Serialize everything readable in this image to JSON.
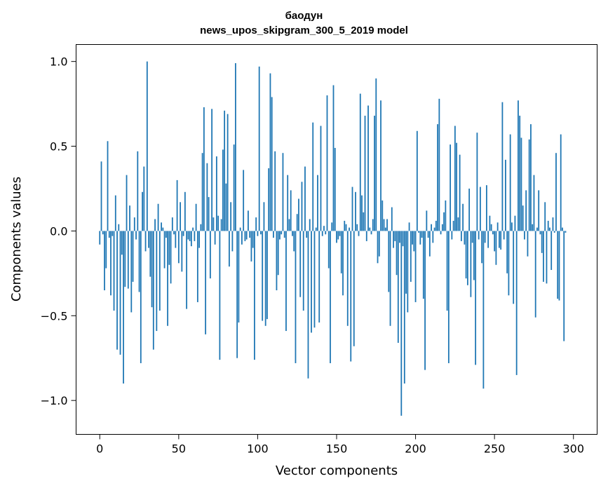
{
  "chart_data": {
    "type": "bar",
    "title": [
      "баодун",
      "news_upos_skipgram_300_5_2019 model"
    ],
    "xlabel": "Vector components",
    "ylabel": "Components values",
    "xlim": [
      -15,
      315
    ],
    "ylim": [
      -1.2,
      1.1
    ],
    "x_ticks": [
      0,
      50,
      100,
      150,
      200,
      250,
      300
    ],
    "x_tick_labels": [
      "0",
      "50",
      "100",
      "150",
      "200",
      "250",
      "300"
    ],
    "y_ticks": [
      1.0,
      0.5,
      0.0,
      -0.5,
      -1.0
    ],
    "y_tick_labels": [
      "1.0",
      "0.5",
      "0.0",
      "−0.5",
      "−1.0"
    ],
    "bar_color": "#1f77b4",
    "values": [
      -0.08,
      0.41,
      -0.02,
      -0.35,
      -0.22,
      0.53,
      -0.04,
      -0.38,
      -0.03,
      -0.47,
      0.21,
      -0.7,
      0.04,
      -0.73,
      -0.14,
      -0.9,
      -0.33,
      0.33,
      -0.34,
      0.15,
      -0.48,
      -0.3,
      0.08,
      -0.05,
      0.47,
      -0.36,
      -0.78,
      0.23,
      0.38,
      -0.12,
      1.0,
      -0.1,
      -0.27,
      -0.45,
      -0.7,
      0.07,
      -0.59,
      0.16,
      -0.47,
      0.05,
      0.02,
      -0.22,
      -0.04,
      -0.56,
      -0.2,
      -0.31,
      0.08,
      -0.02,
      -0.1,
      0.3,
      -0.19,
      0.17,
      -0.24,
      -0.03,
      0.23,
      -0.46,
      -0.05,
      -0.06,
      -0.09,
      0.02,
      -0.06,
      0.16,
      -0.42,
      -0.1,
      0.04,
      0.46,
      0.73,
      -0.61,
      0.4,
      0.2,
      -0.28,
      0.72,
      0.08,
      -0.08,
      0.44,
      0.09,
      -0.76,
      0.07,
      0.48,
      0.71,
      0.28,
      0.69,
      -0.21,
      0.17,
      -0.12,
      0.51,
      0.99,
      -0.75,
      -0.54,
      0.02,
      -0.08,
      0.36,
      -0.06,
      -0.05,
      0.12,
      -0.04,
      -0.18,
      -0.1,
      -0.76,
      0.08,
      -0.03,
      0.97,
      -0.02,
      -0.53,
      0.17,
      -0.56,
      -0.52,
      0.37,
      0.93,
      0.79,
      -0.04,
      0.47,
      -0.35,
      -0.26,
      -0.05,
      -0.02,
      0.46,
      -0.04,
      -0.59,
      0.33,
      0.07,
      0.24,
      -0.03,
      -0.12,
      -0.78,
      0.1,
      0.19,
      -0.39,
      0.29,
      -0.47,
      0.38,
      -0.04,
      -0.87,
      0.07,
      -0.6,
      0.64,
      -0.57,
      0.02,
      0.33,
      -0.54,
      0.62,
      -0.03,
      0.03,
      -0.02,
      0.8,
      -0.22,
      -0.78,
      0.05,
      0.86,
      0.49,
      -0.07,
      -0.05,
      -0.03,
      -0.25,
      -0.38,
      0.06,
      0.04,
      -0.56,
      0.02,
      -0.77,
      0.26,
      -0.68,
      0.23,
      0.04,
      -0.03,
      0.81,
      0.21,
      0.11,
      0.68,
      -0.06,
      0.74,
      0.02,
      -0.02,
      0.07,
      0.68,
      0.9,
      -0.19,
      -0.15,
      0.77,
      0.18,
      0.07,
      0.02,
      0.07,
      -0.36,
      -0.56,
      0.14,
      -0.1,
      -0.06,
      -0.26,
      -0.66,
      -0.07,
      -1.09,
      -0.09,
      -0.9,
      -0.37,
      -0.48,
      0.05,
      -0.3,
      -0.08,
      -0.12,
      -0.42,
      0.59,
      -0.01,
      -0.08,
      -0.04,
      -0.4,
      -0.82,
      0.12,
      -0.04,
      -0.15,
      0.04,
      -0.07,
      0.02,
      0.06,
      0.63,
      0.78,
      -0.02,
      0.04,
      0.11,
      0.18,
      -0.47,
      -0.78,
      0.51,
      -0.05,
      0.06,
      0.62,
      0.52,
      0.08,
      0.45,
      -0.06,
      0.16,
      -0.08,
      -0.28,
      -0.32,
      0.25,
      -0.39,
      -0.07,
      -0.29,
      -0.79,
      0.58,
      -0.05,
      0.26,
      -0.19,
      -0.93,
      -0.07,
      0.27,
      -0.1,
      0.09,
      0.04,
      -0.02,
      -0.12,
      -0.2,
      0.05,
      -0.1,
      -0.11,
      0.76,
      -0.05,
      0.42,
      -0.25,
      -0.38,
      0.57,
      0.05,
      -0.43,
      0.09,
      -0.85,
      0.77,
      0.68,
      0.55,
      0.15,
      -0.05,
      0.24,
      -0.15,
      0.54,
      0.63,
      0.04,
      0.33,
      -0.51,
      0.02,
      0.24,
      -0.02,
      -0.13,
      -0.3,
      0.17,
      -0.31,
      0.06,
      0.02,
      -0.23,
      0.08,
      -0.01,
      0.46,
      -0.4,
      -0.41,
      0.57,
      0.02,
      -0.65,
      -0.01
    ]
  }
}
